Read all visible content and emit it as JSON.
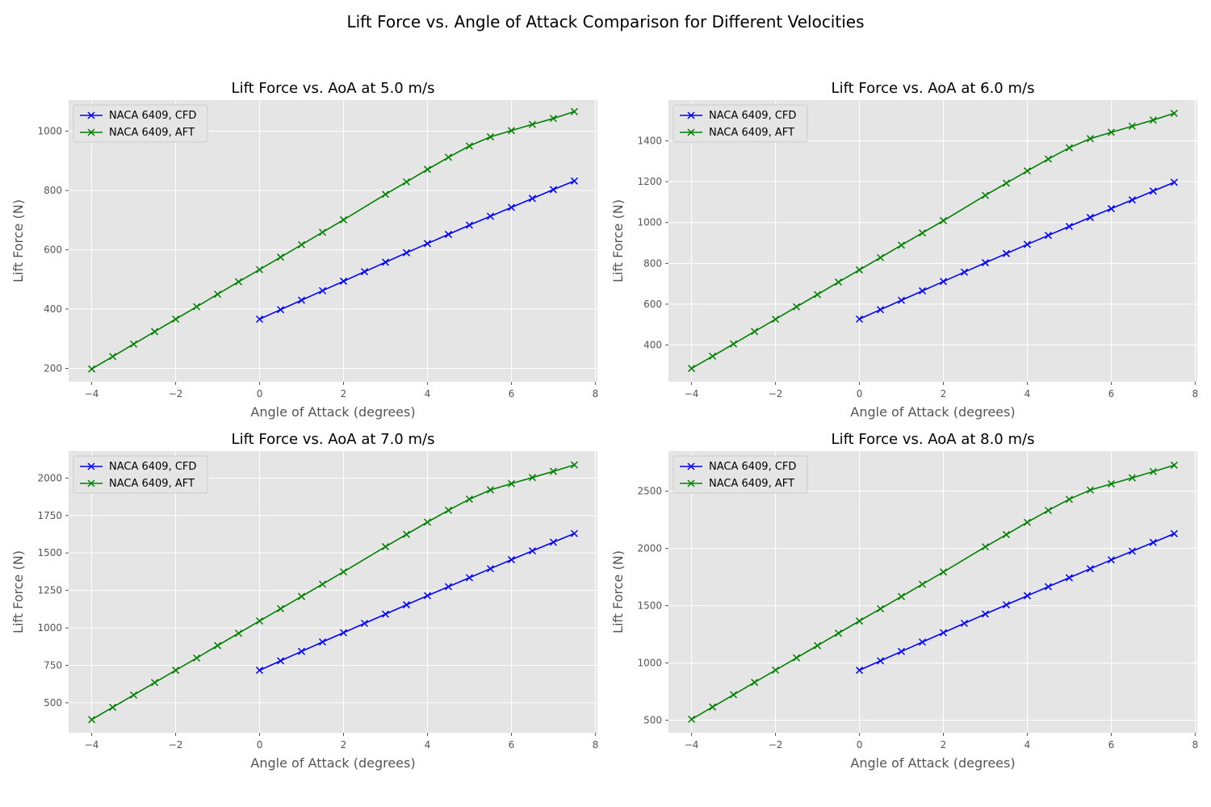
{
  "figure": {
    "suptitle": "Lift Force vs. Angle of Attack Comparison for Different Velocities"
  },
  "style": {
    "plot_bg": "#e5e5e5",
    "grid": "#ffffff",
    "tick_color": "#555555",
    "cfd_color": "#0000ff",
    "aft_color": "#008000",
    "legend_bg": "#e5e5e5",
    "marker": "x"
  },
  "chart_data": [
    {
      "type": "line",
      "title": "Lift Force vs. AoA at 5.0 m/s",
      "xlabel": "Angle of Attack (degrees)",
      "ylabel": "Lift Force (N)",
      "xlim": [
        -4.55,
        8.05
      ],
      "ylim": [
        155,
        1105
      ],
      "xticks": [
        -4,
        -2,
        0,
        2,
        4,
        6,
        8
      ],
      "xtick_labels": [
        "−4",
        "−2",
        "0",
        "2",
        "4",
        "6",
        "8"
      ],
      "yticks": [
        200,
        400,
        600,
        800,
        1000
      ],
      "ytick_labels": [
        "200",
        "400",
        "600",
        "800",
        "1000"
      ],
      "grid": true,
      "legend_position": "upper-left",
      "series": [
        {
          "name": "NACA 6409, CFD",
          "color": "#0000ff",
          "x": [
            0,
            0.5,
            1,
            1.5,
            2,
            2.5,
            3,
            3.5,
            4,
            4.5,
            5,
            5.5,
            6,
            6.5,
            7,
            7.5
          ],
          "y": [
            366,
            398,
            430,
            462,
            494,
            526,
            558,
            590,
            621,
            652,
            683,
            713,
            743,
            773,
            803,
            832
          ]
        },
        {
          "name": "NACA 6409, AFT",
          "color": "#008000",
          "x": [
            -4,
            -3.5,
            -3,
            -2.5,
            -2,
            -1.5,
            -1,
            -0.5,
            0,
            0.5,
            1,
            1.5,
            2,
            3,
            3.5,
            4,
            4.5,
            5,
            5.5,
            6,
            6.5,
            7,
            7.5
          ],
          "y": [
            198,
            240,
            282,
            324,
            366,
            408,
            450,
            492,
            533,
            575,
            617,
            659,
            701,
            787,
            829,
            871,
            912,
            950,
            981,
            1002,
            1023,
            1043,
            1066
          ]
        }
      ]
    },
    {
      "type": "line",
      "title": "Lift Force vs. AoA at 6.0 m/s",
      "xlabel": "Angle of Attack (degrees)",
      "ylabel": "Lift Force (N)",
      "xlim": [
        -4.55,
        8.05
      ],
      "ylim": [
        220,
        1600
      ],
      "xticks": [
        -4,
        -2,
        0,
        2,
        4,
        6,
        8
      ],
      "xtick_labels": [
        "−4",
        "−2",
        "0",
        "2",
        "4",
        "6",
        "8"
      ],
      "yticks": [
        400,
        600,
        800,
        1000,
        1200,
        1400
      ],
      "ytick_labels": [
        "400",
        "600",
        "800",
        "1000",
        "1200",
        "1400"
      ],
      "grid": true,
      "legend_position": "upper-left",
      "series": [
        {
          "name": "NACA 6409, CFD",
          "color": "#0000ff",
          "x": [
            0,
            0.5,
            1,
            1.5,
            2,
            2.5,
            3,
            3.5,
            4,
            4.5,
            5,
            5.5,
            6,
            6.5,
            7,
            7.5
          ],
          "y": [
            527,
            573,
            619,
            665,
            711,
            757,
            803,
            848,
            893,
            937,
            981,
            1025,
            1068,
            1111,
            1154,
            1197
          ]
        },
        {
          "name": "NACA 6409, AFT",
          "color": "#008000",
          "x": [
            -4,
            -3.5,
            -3,
            -2.5,
            -2,
            -1.5,
            -1,
            -0.5,
            0,
            0.5,
            1,
            1.5,
            2,
            3,
            3.5,
            4,
            4.5,
            5,
            5.5,
            6,
            6.5,
            7,
            7.5
          ],
          "y": [
            285,
            345,
            405,
            466,
            526,
            587,
            647,
            708,
            768,
            828,
            889,
            949,
            1009,
            1133,
            1193,
            1253,
            1311,
            1366,
            1411,
            1442,
            1472,
            1502,
            1535
          ]
        }
      ]
    },
    {
      "type": "line",
      "title": "Lift Force vs. AoA at 7.0 m/s",
      "xlabel": "Angle of Attack (degrees)",
      "ylabel": "Lift Force (N)",
      "xlim": [
        -4.55,
        8.05
      ],
      "ylim": [
        300,
        2180
      ],
      "xticks": [
        -4,
        -2,
        0,
        2,
        4,
        6,
        8
      ],
      "xtick_labels": [
        "−4",
        "−2",
        "0",
        "2",
        "4",
        "6",
        "8"
      ],
      "yticks": [
        500,
        750,
        1000,
        1250,
        1500,
        1750,
        2000
      ],
      "ytick_labels": [
        "500",
        "750",
        "1000",
        "1250",
        "1500",
        "1750",
        "2000"
      ],
      "grid": true,
      "legend_position": "upper-left",
      "series": [
        {
          "name": "NACA 6409, CFD",
          "color": "#0000ff",
          "x": [
            0,
            0.5,
            1,
            1.5,
            2,
            2.5,
            3,
            3.5,
            4,
            4.5,
            5,
            5.5,
            6,
            6.5,
            7,
            7.5
          ],
          "y": [
            717,
            780,
            843,
            906,
            968,
            1030,
            1092,
            1154,
            1215,
            1275,
            1335,
            1395,
            1455,
            1514,
            1572,
            1630
          ]
        },
        {
          "name": "NACA 6409, AFT",
          "color": "#008000",
          "x": [
            -4,
            -3.5,
            -3,
            -2.5,
            -2,
            -1.5,
            -1,
            -0.5,
            0,
            0.5,
            1,
            1.5,
            2,
            3,
            3.5,
            4,
            4.5,
            5,
            5.5,
            6,
            6.5,
            7,
            7.5
          ],
          "y": [
            388,
            470,
            552,
            635,
            717,
            799,
            882,
            964,
            1046,
            1128,
            1210,
            1292,
            1374,
            1542,
            1624,
            1706,
            1785,
            1859,
            1921,
            1963,
            2004,
            2045,
            2088
          ]
        }
      ]
    },
    {
      "type": "line",
      "title": "Lift Force vs. AoA at 8.0 m/s",
      "xlabel": "Angle of Attack (degrees)",
      "ylabel": "Lift Force (N)",
      "xlim": [
        -4.55,
        8.05
      ],
      "ylim": [
        390,
        2850
      ],
      "xticks": [
        -4,
        -2,
        0,
        2,
        4,
        6,
        8
      ],
      "xtick_labels": [
        "−4",
        "−2",
        "0",
        "2",
        "4",
        "6",
        "8"
      ],
      "yticks": [
        500,
        1000,
        1500,
        2000,
        2500
      ],
      "ytick_labels": [
        "500",
        "1000",
        "1500",
        "2000",
        "2500"
      ],
      "grid": true,
      "legend_position": "upper-left",
      "series": [
        {
          "name": "NACA 6409, CFD",
          "color": "#0000ff",
          "x": [
            0,
            0.5,
            1,
            1.5,
            2,
            2.5,
            3,
            3.5,
            4,
            4.5,
            5,
            5.5,
            6,
            6.5,
            7,
            7.5
          ],
          "y": [
            936,
            1018,
            1100,
            1182,
            1264,
            1346,
            1427,
            1507,
            1587,
            1666,
            1744,
            1822,
            1900,
            1976,
            2052,
            2129
          ]
        },
        {
          "name": "NACA 6409, AFT",
          "color": "#008000",
          "x": [
            -4,
            -3.5,
            -3,
            -2.5,
            -2,
            -1.5,
            -1,
            -0.5,
            0,
            0.5,
            1,
            1.5,
            2,
            3,
            3.5,
            4,
            4.5,
            5,
            5.5,
            6,
            6.5,
            7,
            7.5
          ],
          "y": [
            508,
            615,
            722,
            830,
            937,
            1044,
            1151,
            1259,
            1366,
            1473,
            1580,
            1687,
            1794,
            2014,
            2121,
            2228,
            2332,
            2429,
            2510,
            2564,
            2617,
            2671,
            2727
          ]
        }
      ]
    }
  ]
}
